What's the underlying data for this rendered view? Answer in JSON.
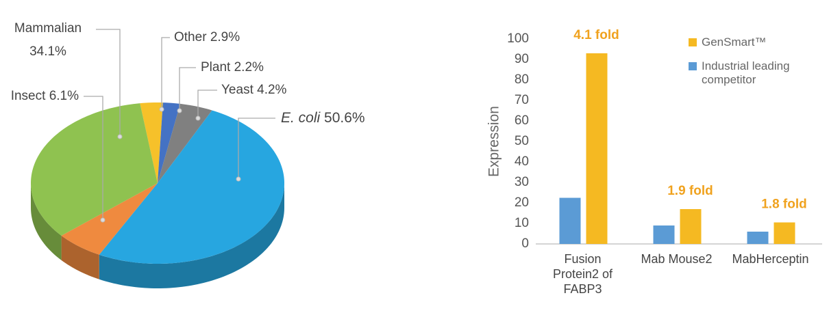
{
  "chart_data": [
    {
      "type": "pie",
      "categories": [
        "Other",
        "Plant",
        "Yeast",
        "E. coli",
        "Insect",
        "Mammalian"
      ],
      "values": [
        2.9,
        2.2,
        4.2,
        50.6,
        6.1,
        34.1
      ],
      "value_labels": [
        "2.9%",
        "2.2%",
        "4.2%",
        "50.6%",
        "6.1%",
        "34.1%"
      ],
      "colors": [
        "#f6c12a",
        "#4472c4",
        "#808080",
        "#27a6e0",
        "#ef8a3f",
        "#8fc250"
      ]
    },
    {
      "type": "bar",
      "y_label": "Expression",
      "categories": [
        "Fusion Protein2 of FABP3",
        "Mab Mouse2",
        "MabHerceptin"
      ],
      "series": [
        {
          "name": "Industrial leading competitor",
          "color": "#5b9bd5",
          "values": [
            22.5,
            9,
            6
          ]
        },
        {
          "name": "GenSmart™",
          "color": "#f5b922",
          "values": [
            93,
            17,
            10.5
          ]
        }
      ],
      "annotations": [
        "4.1 fold",
        "1.9 fold",
        "1.8 fold"
      ],
      "ylim": [
        0,
        100
      ],
      "yticks": [
        0,
        10,
        20,
        30,
        40,
        50,
        60,
        70,
        80,
        90,
        100
      ]
    }
  ]
}
